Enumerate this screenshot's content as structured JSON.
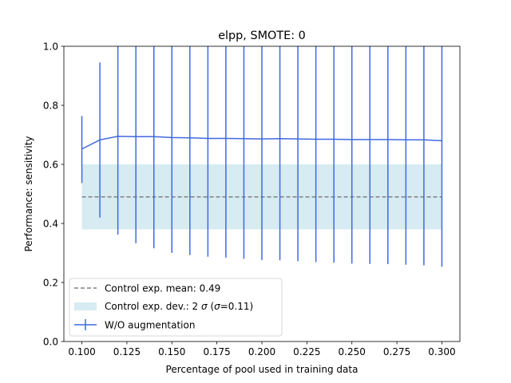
{
  "chart_data": {
    "type": "line",
    "title": "elpp, SMOTE: 0",
    "xlabel": "Percentage of pool used in training data",
    "ylabel": "Performance: sensitivity",
    "xlim": [
      0.09,
      0.31
    ],
    "ylim": [
      0.0,
      1.0
    ],
    "grid": false,
    "legend_position": "lower-left",
    "x_ticks": [
      0.1,
      0.125,
      0.15,
      0.175,
      0.2,
      0.225,
      0.25,
      0.275,
      0.3
    ],
    "x_tick_labels": [
      "0.100",
      "0.125",
      "0.150",
      "0.175",
      "0.200",
      "0.225",
      "0.250",
      "0.275",
      "0.300"
    ],
    "y_ticks": [
      0.0,
      0.2,
      0.4,
      0.6,
      0.8,
      1.0
    ],
    "y_tick_labels": [
      "0.0",
      "0.2",
      "0.4",
      "0.6",
      "0.8",
      "1.0"
    ],
    "control": {
      "mean": 0.49,
      "lower": 0.38,
      "upper": 0.6,
      "x_range": [
        0.1,
        0.3
      ],
      "mean_label": "Control exp. mean: 0.49",
      "band_label_prefix": "Control exp. dev.: 2 ",
      "band_label_sigma": "σ",
      "band_label_mid": " (",
      "band_label_suffix": "=0.11)",
      "mean_color": "#808080",
      "band_color": "#add8e6"
    },
    "series": [
      {
        "name": "W/O augmentation",
        "color": "#4169e1",
        "x": [
          0.1,
          0.11,
          0.12,
          0.13,
          0.14,
          0.15,
          0.16,
          0.17,
          0.18,
          0.19,
          0.2,
          0.21,
          0.22,
          0.23,
          0.24,
          0.25,
          0.26,
          0.27,
          0.28,
          0.29,
          0.3
        ],
        "y": [
          0.652,
          0.683,
          0.695,
          0.694,
          0.694,
          0.691,
          0.69,
          0.688,
          0.688,
          0.687,
          0.686,
          0.687,
          0.686,
          0.685,
          0.685,
          0.684,
          0.684,
          0.684,
          0.683,
          0.683,
          0.68
        ],
        "err_low": [
          0.537,
          0.42,
          0.362,
          0.333,
          0.316,
          0.3,
          0.293,
          0.287,
          0.284,
          0.28,
          0.276,
          0.275,
          0.272,
          0.269,
          0.267,
          0.264,
          0.263,
          0.262,
          0.26,
          0.258,
          0.253
        ],
        "err_high": [
          0.764,
          0.945,
          1.03,
          1.06,
          1.07,
          1.08,
          1.09,
          1.09,
          1.09,
          1.09,
          1.1,
          1.1,
          1.1,
          1.1,
          1.1,
          1.1,
          1.1,
          1.1,
          1.11,
          1.11,
          1.11
        ]
      }
    ]
  }
}
